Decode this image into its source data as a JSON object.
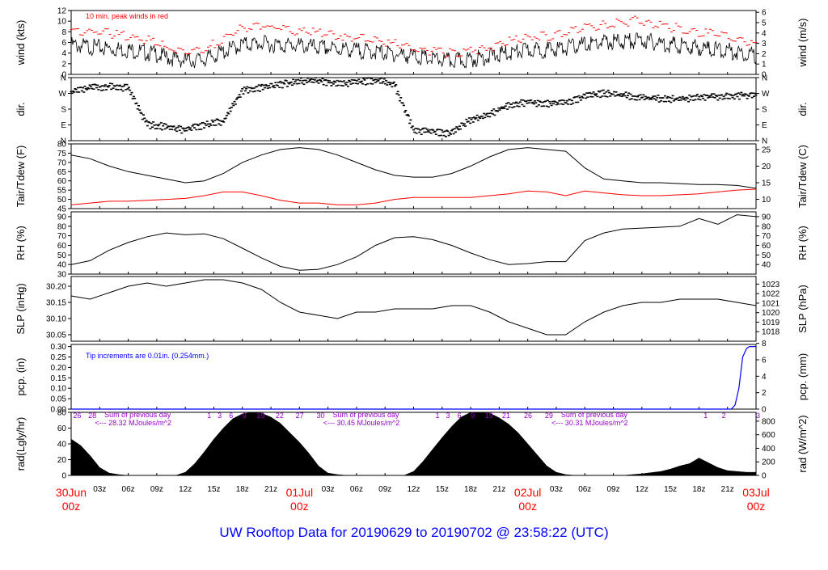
{
  "footer": {
    "title": "UW Rooftop Data for 20190629  to  20190702 @ 23:58:22  (UTC)"
  },
  "colors": {
    "primary": "#000000",
    "peak": "#ff0000",
    "dew": "#ff0000",
    "precip": "#0000ff",
    "sun": "#9900cc",
    "date": "#ff0000",
    "title": "#0000ff"
  },
  "xaxis": {
    "hour_ticks": [
      "03z",
      "06z",
      "09z",
      "12z",
      "15z",
      "18z",
      "21z",
      "01Jul",
      "03z",
      "06z",
      "09z",
      "12z",
      "15z",
      "18z",
      "21z",
      "02Jul",
      "03z",
      "06z",
      "09z",
      "12z",
      "15z",
      "18z",
      "21z",
      "03Jul"
    ],
    "date_labels": [
      {
        "day": "30Jun",
        "hour": "00z",
        "h": 0
      },
      {
        "day": "01Jul",
        "hour": "00z",
        "h": 24
      },
      {
        "day": "02Jul",
        "hour": "00z",
        "h": 48
      },
      {
        "day": "03Jul",
        "hour": "00z",
        "h": 72
      }
    ],
    "range_hours": [
      0,
      72
    ]
  },
  "chart_data": [
    {
      "type": "line",
      "id": "wind",
      "ylabel": "wind (kts)",
      "ylabel2": "wind (m/s)",
      "ylim": [
        0,
        12
      ],
      "yticks": [
        "0",
        "2",
        "4",
        "6",
        "8",
        "10",
        "12"
      ],
      "ylim2": [
        0,
        6.17
      ],
      "yticks2": [
        "0",
        "1",
        "2",
        "3",
        "4",
        "5",
        "6"
      ],
      "annotation": "10 min. peak winds in red",
      "series": [
        {
          "values_x": [
            0,
            3,
            6,
            9,
            10,
            12,
            14,
            16,
            18,
            20,
            22,
            24,
            26,
            28,
            30,
            32,
            34,
            36,
            38,
            40,
            42,
            44,
            46,
            48,
            50,
            52,
            54,
            56,
            58,
            60,
            62,
            64,
            66,
            68,
            70,
            72
          ],
          "values_y": [
            5.5,
            5.0,
            4.6,
            3.8,
            3.2,
            2.6,
            2.8,
            4.2,
            5.6,
            5.8,
            5.5,
            5.4,
            5.0,
            4.8,
            4.5,
            4.2,
            3.8,
            3.4,
            2.8,
            2.5,
            2.8,
            3.4,
            4.0,
            4.5,
            4.6,
            5.0,
            5.6,
            6.0,
            6.2,
            6.4,
            5.8,
            5.4,
            5.0,
            4.6,
            4.2,
            3.6
          ]
        },
        {
          "values_x": [
            0,
            3,
            6,
            9,
            10,
            12,
            14,
            16,
            18,
            20,
            22,
            24,
            26,
            28,
            30,
            32,
            34,
            36,
            38,
            40,
            42,
            44,
            46,
            48,
            50,
            52,
            54,
            56,
            58,
            60,
            62,
            64,
            66,
            68,
            70,
            72
          ],
          "values_y": [
            8.4,
            8.0,
            7.2,
            6.0,
            5.0,
            4.2,
            4.5,
            6.8,
            8.6,
            9.0,
            8.6,
            8.2,
            7.8,
            7.4,
            6.8,
            6.4,
            5.8,
            5.2,
            4.4,
            4.0,
            4.4,
            5.2,
            6.2,
            7.0,
            7.2,
            7.8,
            8.8,
            9.4,
            9.8,
            10.2,
            9.2,
            8.6,
            8.0,
            7.4,
            6.6,
            5.6
          ]
        }
      ]
    },
    {
      "type": "scatter",
      "id": "dir",
      "ylabel": "dir.",
      "ylabel2": "dir.",
      "ylim": [
        0,
        360
      ],
      "yticks": [
        "N",
        "E",
        "S",
        "W",
        "N"
      ],
      "series": [
        {
          "values_x": [
            0,
            2,
            4,
            6,
            8,
            10,
            12,
            14,
            16,
            18,
            20,
            22,
            24,
            26,
            28,
            30,
            32,
            34,
            36,
            38,
            40,
            42,
            44,
            46,
            48,
            50,
            52,
            54,
            56,
            58,
            60,
            62,
            64,
            66,
            68,
            70,
            72
          ],
          "values_y": [
            280,
            300,
            310,
            300,
            90,
            80,
            60,
            90,
            110,
            285,
            300,
            320,
            340,
            340,
            325,
            330,
            345,
            320,
            60,
            50,
            40,
            120,
            150,
            200,
            220,
            210,
            215,
            250,
            270,
            260,
            245,
            240,
            235,
            250,
            250,
            255,
            260
          ]
        }
      ]
    },
    {
      "type": "line",
      "id": "temp",
      "ylabel": "Tair/Tdew (F)",
      "ylabel2": "Tair/Tdew (C)",
      "ylim": [
        45,
        80
      ],
      "yticks": [
        "45",
        "50",
        "55",
        "60",
        "65",
        "70",
        "75",
        "80"
      ],
      "ylim2": [
        7.2,
        26.7
      ],
      "yticks2": [
        "10",
        "15",
        "20",
        "25"
      ],
      "series": [
        {
          "values_x": [
            0,
            2,
            4,
            6,
            8,
            10,
            12,
            14,
            16,
            18,
            20,
            22,
            24,
            26,
            28,
            30,
            32,
            34,
            36,
            38,
            40,
            42,
            44,
            46,
            48,
            50,
            52,
            54,
            56,
            58,
            60,
            62,
            64,
            66,
            68,
            70,
            72
          ],
          "values_y": [
            74,
            72,
            68,
            65,
            63,
            61,
            59,
            60,
            64,
            70,
            74,
            77,
            78,
            77,
            74,
            70,
            66,
            63,
            62,
            62,
            64,
            68,
            73,
            77,
            78,
            77,
            76,
            67,
            61,
            60,
            59,
            59,
            58.5,
            58,
            58,
            57.5,
            56
          ]
        },
        {
          "values_x": [
            0,
            2,
            4,
            6,
            8,
            10,
            12,
            14,
            16,
            18,
            20,
            22,
            24,
            26,
            28,
            30,
            32,
            34,
            36,
            38,
            40,
            42,
            44,
            46,
            48,
            50,
            52,
            54,
            56,
            58,
            60,
            62,
            64,
            66,
            68,
            70,
            72
          ],
          "values_y": [
            47,
            48,
            49,
            49,
            49.5,
            50,
            50.5,
            52,
            54,
            54,
            52,
            49.5,
            48,
            48,
            47,
            47,
            48,
            50,
            51,
            51,
            51,
            51,
            52,
            53,
            54.5,
            54,
            52,
            54.5,
            53.5,
            52.5,
            52,
            52,
            52.5,
            53,
            54,
            55,
            55.5
          ]
        }
      ]
    },
    {
      "type": "line",
      "id": "rh",
      "ylabel": "RH (%)",
      "ylabel2": "RH (%)",
      "ylim": [
        30,
        95
      ],
      "yticks": [
        "30",
        "40",
        "50",
        "60",
        "70",
        "80",
        "90"
      ],
      "yticks2": [
        "40",
        "50",
        "60",
        "70",
        "80",
        "90"
      ],
      "series": [
        {
          "values_x": [
            0,
            2,
            4,
            6,
            8,
            10,
            12,
            14,
            16,
            18,
            20,
            22,
            24,
            26,
            28,
            30,
            32,
            34,
            36,
            38,
            40,
            42,
            44,
            46,
            48,
            50,
            52,
            54,
            56,
            58,
            60,
            62,
            64,
            66,
            68,
            70,
            72
          ],
          "values_y": [
            40,
            44,
            55,
            63,
            69,
            73,
            71,
            72,
            67,
            57,
            47,
            38,
            34,
            35,
            40,
            48,
            60,
            68,
            69,
            66,
            60,
            52,
            45,
            40,
            41,
            43,
            43,
            65,
            73,
            77,
            78,
            79,
            80,
            88,
            82,
            92,
            90
          ]
        }
      ]
    },
    {
      "type": "line",
      "id": "slp",
      "ylabel": "SLP (inHg)",
      "ylabel2": "SLP (hPa)",
      "ylim": [
        30.03,
        30.23
      ],
      "yticks": [
        "30.05",
        "30.10",
        "30.15",
        "30.20"
      ],
      "ylim2": [
        1017.0,
        1023.8
      ],
      "yticks2": [
        "1018",
        "1019",
        "1020",
        "1021",
        "1022",
        "1023"
      ],
      "series": [
        {
          "values_x": [
            0,
            2,
            4,
            6,
            8,
            10,
            12,
            14,
            16,
            18,
            20,
            22,
            24,
            26,
            28,
            30,
            32,
            34,
            36,
            38,
            40,
            42,
            44,
            46,
            48,
            50,
            52,
            54,
            56,
            58,
            60,
            62,
            64,
            66,
            68,
            70,
            72
          ],
          "values_y": [
            30.17,
            30.16,
            30.18,
            30.2,
            30.21,
            30.2,
            30.21,
            30.22,
            30.22,
            30.21,
            30.19,
            30.15,
            30.12,
            30.11,
            30.1,
            30.12,
            30.12,
            30.13,
            30.13,
            30.13,
            30.14,
            30.14,
            30.12,
            30.09,
            30.07,
            30.05,
            30.05,
            30.09,
            30.12,
            30.14,
            30.15,
            30.15,
            30.16,
            30.16,
            30.16,
            30.15,
            30.14
          ]
        }
      ]
    },
    {
      "type": "line",
      "id": "pcp",
      "ylabel": "pcp. (in)",
      "ylabel2": "pcp. (mm)",
      "ylim": [
        0,
        0.31
      ],
      "yticks": [
        "0.00",
        "0.05",
        "0.10",
        "0.15",
        "0.20",
        "0.25",
        "0.30"
      ],
      "ylim2": [
        0,
        7.87
      ],
      "yticks2": [
        "0",
        "2",
        "4",
        "6",
        "8"
      ],
      "annotation": "Tip increments are 0.01in. (0.254mm.)",
      "series": [
        {
          "values_x": [
            0,
            69.4,
            69.8,
            70.2,
            70.6,
            71.0,
            71.3,
            72
          ],
          "values_y": [
            0,
            0,
            0.02,
            0.1,
            0.25,
            0.29,
            0.3,
            0.3
          ]
        }
      ]
    },
    {
      "type": "area",
      "id": "rad",
      "ylabel": "rad(Lgly/hr)",
      "ylabel2": "rad (W/m^2)",
      "ylim": [
        0,
        80
      ],
      "yticks": [
        "0",
        "20",
        "40",
        "60",
        "80"
      ],
      "ylim2": [
        0,
        930
      ],
      "yticks2": [
        "0",
        "200",
        "400",
        "600",
        "800"
      ],
      "annotations": [
        {
          "text": "Sum of previous day",
          "h": 3.5
        },
        {
          "text": "<--- 28.32 MJoules/m^2",
          "h": 2.5
        },
        {
          "text": "Sum of previous day",
          "h": 27.5
        },
        {
          "text": "<--- 30.45 MJoules/m^2",
          "h": 26.5
        },
        {
          "text": "Sum of previous day",
          "h": 51.5
        },
        {
          "text": "<--- 30.31 MJoules/m^2",
          "h": 50.5
        }
      ],
      "sun_labels": [
        {
          "text": "26",
          "h": 0.2
        },
        {
          "text": "28",
          "h": 1.8
        },
        {
          "text": "1",
          "h": 14.3
        },
        {
          "text": "3",
          "h": 15.4
        },
        {
          "text": "6",
          "h": 16.6
        },
        {
          "text": "9",
          "h": 18.0
        },
        {
          "text": "19",
          "h": 19.5
        },
        {
          "text": "22",
          "h": 21.5
        },
        {
          "text": "27",
          "h": 23.6
        },
        {
          "text": "30",
          "h": 25.8
        },
        {
          "text": "1",
          "h": 38.3
        },
        {
          "text": "3",
          "h": 39.4
        },
        {
          "text": "6",
          "h": 40.6
        },
        {
          "text": "9",
          "h": 42.0
        },
        {
          "text": "19",
          "h": 43.5
        },
        {
          "text": "21",
          "h": 45.3
        },
        {
          "text": "26",
          "h": 47.6
        },
        {
          "text": "29",
          "h": 49.8
        },
        {
          "text": "1",
          "h": 66.5
        },
        {
          "text": "2",
          "h": 68.4
        },
        {
          "text": "3",
          "h": 72.0
        }
      ],
      "series": [
        {
          "values_x": [
            0,
            1,
            2,
            3,
            4,
            5,
            6,
            11,
            12,
            13,
            14,
            15,
            16,
            17,
            18,
            19,
            20,
            21,
            22,
            23,
            24,
            25,
            26,
            27,
            28,
            29,
            30,
            35,
            36,
            37,
            38,
            39,
            40,
            41,
            42,
            43,
            44,
            45,
            46,
            47,
            48,
            49,
            50,
            51,
            52,
            53,
            54,
            58,
            60,
            62,
            63,
            64,
            65,
            66,
            67,
            68,
            69,
            70,
            71,
            72
          ],
          "values_y": [
            46,
            38,
            25,
            10,
            3,
            1,
            0,
            0,
            4,
            15,
            30,
            46,
            60,
            72,
            78,
            81,
            79,
            74,
            66,
            54,
            42,
            28,
            12,
            3,
            1,
            0,
            0,
            0,
            5,
            18,
            33,
            48,
            62,
            74,
            80,
            82,
            79,
            73,
            65,
            54,
            40,
            26,
            12,
            4,
            1,
            0,
            0,
            0,
            2,
            5,
            8,
            12,
            15,
            22,
            16,
            10,
            6,
            5,
            4,
            4
          ]
        }
      ]
    }
  ]
}
